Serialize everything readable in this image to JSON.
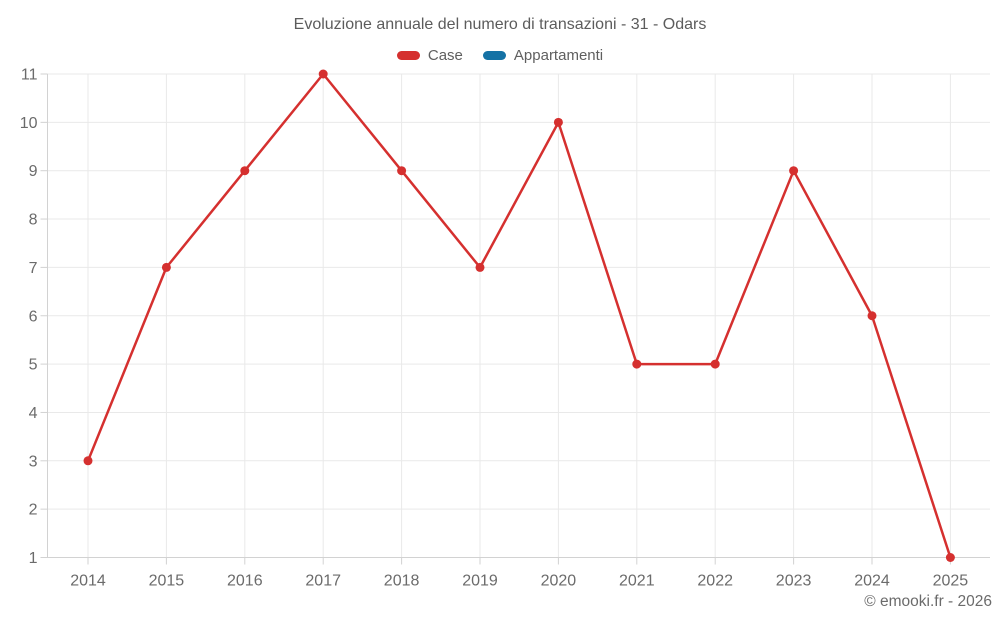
{
  "header": {
    "title": "Evoluzione annuale del numero di transazioni - 31 - Odars"
  },
  "legend": {
    "items": [
      {
        "label": "Case",
        "color": "#d5302f"
      },
      {
        "label": "Appartamenti",
        "color": "#1572a5"
      }
    ]
  },
  "footer": {
    "credit": "© emooki.fr - 2026"
  },
  "chart_data": {
    "type": "line",
    "title": "Evoluzione annuale del numero di transazioni - 31 - Odars",
    "categories": [
      "2014",
      "2015",
      "2016",
      "2017",
      "2018",
      "2019",
      "2020",
      "2021",
      "2022",
      "2023",
      "2024",
      "2025"
    ],
    "series": [
      {
        "name": "Case",
        "color": "#d5302f",
        "values": [
          3,
          7,
          9,
          11,
          9,
          7,
          10,
          5,
          5,
          9,
          6,
          1
        ]
      },
      {
        "name": "Appartamenti",
        "color": "#1572a5",
        "values": []
      }
    ],
    "xlabel": "",
    "ylabel": "",
    "ylim": [
      1,
      11
    ],
    "yticks": [
      1,
      2,
      3,
      4,
      5,
      6,
      7,
      8,
      9,
      10,
      11
    ],
    "grid": true,
    "legend_position": "top",
    "marker": "circle",
    "grid_color": "#e9e9e9",
    "axis_color": "#d2d2d2"
  }
}
